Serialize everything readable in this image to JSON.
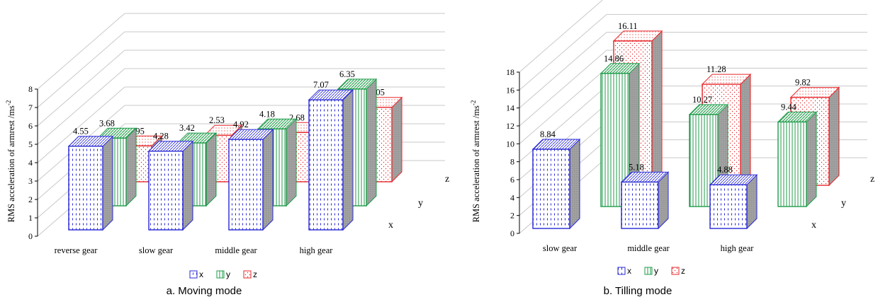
{
  "chart_data": [
    {
      "type": "bar",
      "title": "",
      "caption": "a. Moving mode",
      "ylabel": "RMS acceleration of armrest /ms",
      "ylabel_sup": "-2",
      "ylim": [
        0,
        8
      ],
      "yticks": [
        "0",
        "1",
        "2",
        "3",
        "4",
        "5",
        "6",
        "7",
        "8"
      ],
      "categories": [
        "reverse gear",
        "slow gear",
        "middle gear",
        "high gear"
      ],
      "depth_axis_labels": [
        "x",
        "y",
        "z"
      ],
      "series": [
        {
          "name": "x",
          "values": [
            4.55,
            4.28,
            4.92,
            7.07
          ],
          "labels": [
            "4.55",
            "4.28",
            "4.92",
            "7.07"
          ]
        },
        {
          "name": "y",
          "values": [
            3.68,
            3.42,
            4.18,
            6.35
          ],
          "labels": [
            "3.68",
            "3.42",
            "4.18",
            "6.35"
          ]
        },
        {
          "name": "z",
          "values": [
            1.95,
            2.53,
            2.68,
            4.05
          ],
          "labels": [
            "1.95",
            "2.53",
            "2.68",
            "4.05"
          ]
        }
      ],
      "legend": {
        "placement": "bottom",
        "entries": [
          "x",
          "y",
          "z"
        ]
      },
      "grid": true
    },
    {
      "type": "bar",
      "title": "",
      "caption": "b. Tilling mode",
      "ylabel": "RMS acceleration of  armrest /ms",
      "ylabel_sup": "-2",
      "ylim": [
        0,
        18
      ],
      "yticks": [
        "0",
        "2",
        "4",
        "6",
        "8",
        "10",
        "12",
        "14",
        "16",
        "18"
      ],
      "categories": [
        "slow gear",
        "middle gear",
        "high gear"
      ],
      "depth_axis_labels": [
        "x",
        "y",
        "z"
      ],
      "series": [
        {
          "name": "x",
          "values": [
            8.84,
            5.18,
            4.88
          ],
          "labels": [
            "8.84",
            "5.18",
            "4.88"
          ]
        },
        {
          "name": "y",
          "values": [
            14.86,
            10.27,
            9.44
          ],
          "labels": [
            "14.86",
            "10.27",
            "9.44"
          ]
        },
        {
          "name": "z",
          "values": [
            16.11,
            11.28,
            9.82
          ],
          "labels": [
            "16.11",
            "11.28",
            "9.82"
          ]
        }
      ],
      "legend": {
        "placement": "bottom",
        "entries": [
          "x",
          "y",
          "z"
        ]
      },
      "grid": true
    }
  ],
  "colors": {
    "x": "#2727d6",
    "y": "#1f9b4a",
    "z": "#e8262a",
    "side": "#a6a6a6",
    "grid": "#c8c8c8"
  }
}
